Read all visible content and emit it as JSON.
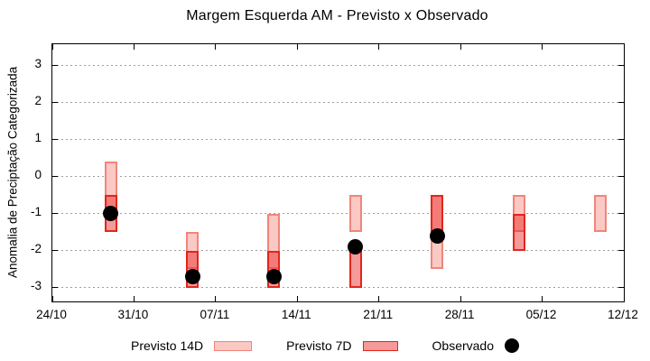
{
  "chart_data": {
    "type": "bar",
    "title": "Margem Esquerda AM - Previsto x Observado",
    "xlabel": "",
    "ylabel": "Anomalia de Preciptação Categorizada",
    "x_tick_labels": [
      "24/10",
      "31/10",
      "07/11",
      "14/11",
      "21/11",
      "28/11",
      "05/12",
      "12/12"
    ],
    "x_tick_interval_days": 7,
    "x_range_days": 49,
    "y_ticks": [
      3,
      2,
      1,
      0,
      -1,
      -2,
      -3
    ],
    "ylim": [
      -3.4,
      3.57
    ],
    "grid": "horizontal dotted",
    "legend_position": "bottom center",
    "legend": [
      {
        "label": "Previsto 14D",
        "swatch": "light-pink-box"
      },
      {
        "label": "Previsto 7D",
        "swatch": "red-box"
      },
      {
        "label": "Observado",
        "swatch": "black-dot"
      }
    ],
    "clusters": [
      {
        "x_day": 5,
        "x_date": "29/10",
        "previsto_14d": [
          0.4,
          -1.0
        ],
        "previsto_7d": [
          -0.5,
          -1.5
        ],
        "observado": -1.0
      },
      {
        "x_day": 12,
        "x_date": "05/11",
        "previsto_14d": [
          -1.5,
          -2.5
        ],
        "previsto_7d": [
          -2.0,
          -3.0
        ],
        "observado": -2.7
      },
      {
        "x_day": 19,
        "x_date": "12/11",
        "previsto_14d": [
          -1.0,
          -2.5
        ],
        "previsto_7d": [
          -2.0,
          -3.0
        ],
        "observado": -2.7
      },
      {
        "x_day": 26,
        "x_date": "19/11",
        "previsto_14d": [
          -0.5,
          -1.5
        ],
        "previsto_7d": [
          -2.0,
          -3.0
        ],
        "observado": -1.9
      },
      {
        "x_day": 33,
        "x_date": "26/11",
        "previsto_14d": [
          -0.5,
          -2.5
        ],
        "previsto_7d": [
          -0.5,
          -1.5
        ],
        "observado": -1.6
      },
      {
        "x_day": 40,
        "x_date": "03/12",
        "previsto_14d": [
          -0.5,
          -1.5
        ],
        "previsto_7d": [
          -1.0,
          -2.0
        ],
        "observado": null
      },
      {
        "x_day": 47,
        "x_date": "10/12",
        "previsto_14d": [
          -0.5,
          -1.5
        ],
        "previsto_7d": null,
        "observado": null
      }
    ],
    "colors": {
      "previsto_14d_fill": "#fbc9c4",
      "previsto_14d_border": "#f0857a",
      "previsto_7d_fill": "#fa9b97",
      "previsto_7d_border": "#e3251c",
      "overlap_fill": "#f17070",
      "observado": "#000000",
      "grid": "#9e9e9e",
      "axis": "#000000"
    }
  }
}
